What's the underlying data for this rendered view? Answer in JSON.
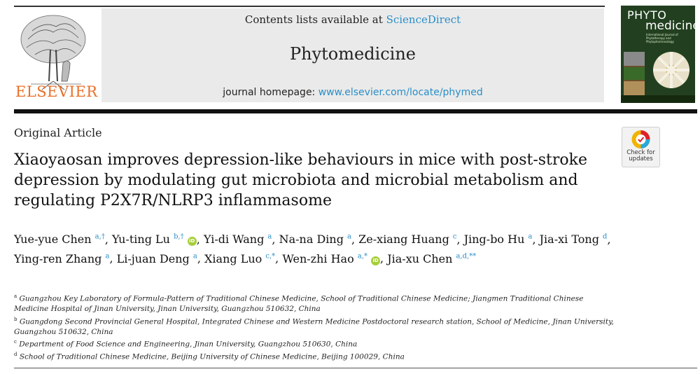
{
  "header": {
    "contents_prefix": "Contents lists available at",
    "contents_link": "ScienceDirect",
    "journal_name": "Phytomedicine",
    "homepage_prefix": "journal homepage:",
    "homepage_url": "www.elsevier.com/locate/phymed",
    "publisher_logo_text": "ELSEVIER"
  },
  "cover": {
    "title_line1": "PHYTO",
    "title_line2": "medicine",
    "subtitle": "International Journal of Phytotherapy and Phytopharmacology"
  },
  "check_updates": {
    "line1": "Check for",
    "line2": "updates"
  },
  "article": {
    "type": "Original Article",
    "title": "Xiaoyaosan improves depression-like behaviours in mice with post-stroke depression by modulating gut microbiota and microbial metabolism and regulating P2X7R/NLRP3 inflammasome"
  },
  "authors": [
    {
      "name": "Yue-yue Chen",
      "sup": "a,†",
      "orcid": false
    },
    {
      "name": "Yu-ting Lu",
      "sup": "b,†",
      "orcid": true
    },
    {
      "name": "Yi-di Wang",
      "sup": "a",
      "orcid": false
    },
    {
      "name": "Na-na Ding",
      "sup": "a",
      "orcid": false
    },
    {
      "name": "Ze-xiang Huang",
      "sup": "c",
      "orcid": false
    },
    {
      "name": "Jing-bo Hu",
      "sup": "a",
      "orcid": false
    },
    {
      "name": "Jia-xi Tong",
      "sup": "d",
      "orcid": false
    },
    {
      "name": "Ying-ren Zhang",
      "sup": "a",
      "orcid": false
    },
    {
      "name": "Li-juan Deng",
      "sup": "a",
      "orcid": false
    },
    {
      "name": "Xiang Luo",
      "sup": "c,*",
      "orcid": false
    },
    {
      "name": "Wen-zhi Hao",
      "sup": "a,*",
      "orcid": true
    },
    {
      "name": "Jia-xu Chen",
      "sup": "a,d,**",
      "orcid": false
    }
  ],
  "affiliations": [
    {
      "label": "a",
      "text": "Guangzhou Key Laboratory of Formula-Pattern of Traditional Chinese Medicine, School of Traditional Chinese Medicine; Jiangmen Traditional Chinese Medicine Hospital of Jinan University, Jinan University, Guangzhou 510632, China"
    },
    {
      "label": "b",
      "text": "Guangdong Second Provincial General Hospital, Integrated Chinese and Western Medicine Postdoctoral research station, School of Medicine, Jinan University, Guangzhou 510632, China"
    },
    {
      "label": "c",
      "text": "Department of Food Science and Engineering, Jinan University, Guangzhou 510630, China"
    },
    {
      "label": "d",
      "text": "School of Traditional Chinese Medicine, Beijing University of Chinese Medicine, Beijing 100029, China"
    }
  ],
  "colors": {
    "link": "#2a8ec8",
    "elsevier_orange": "#e8702a",
    "orcid_green": "#a6ce39",
    "banner_gray": "#eaeaea"
  }
}
